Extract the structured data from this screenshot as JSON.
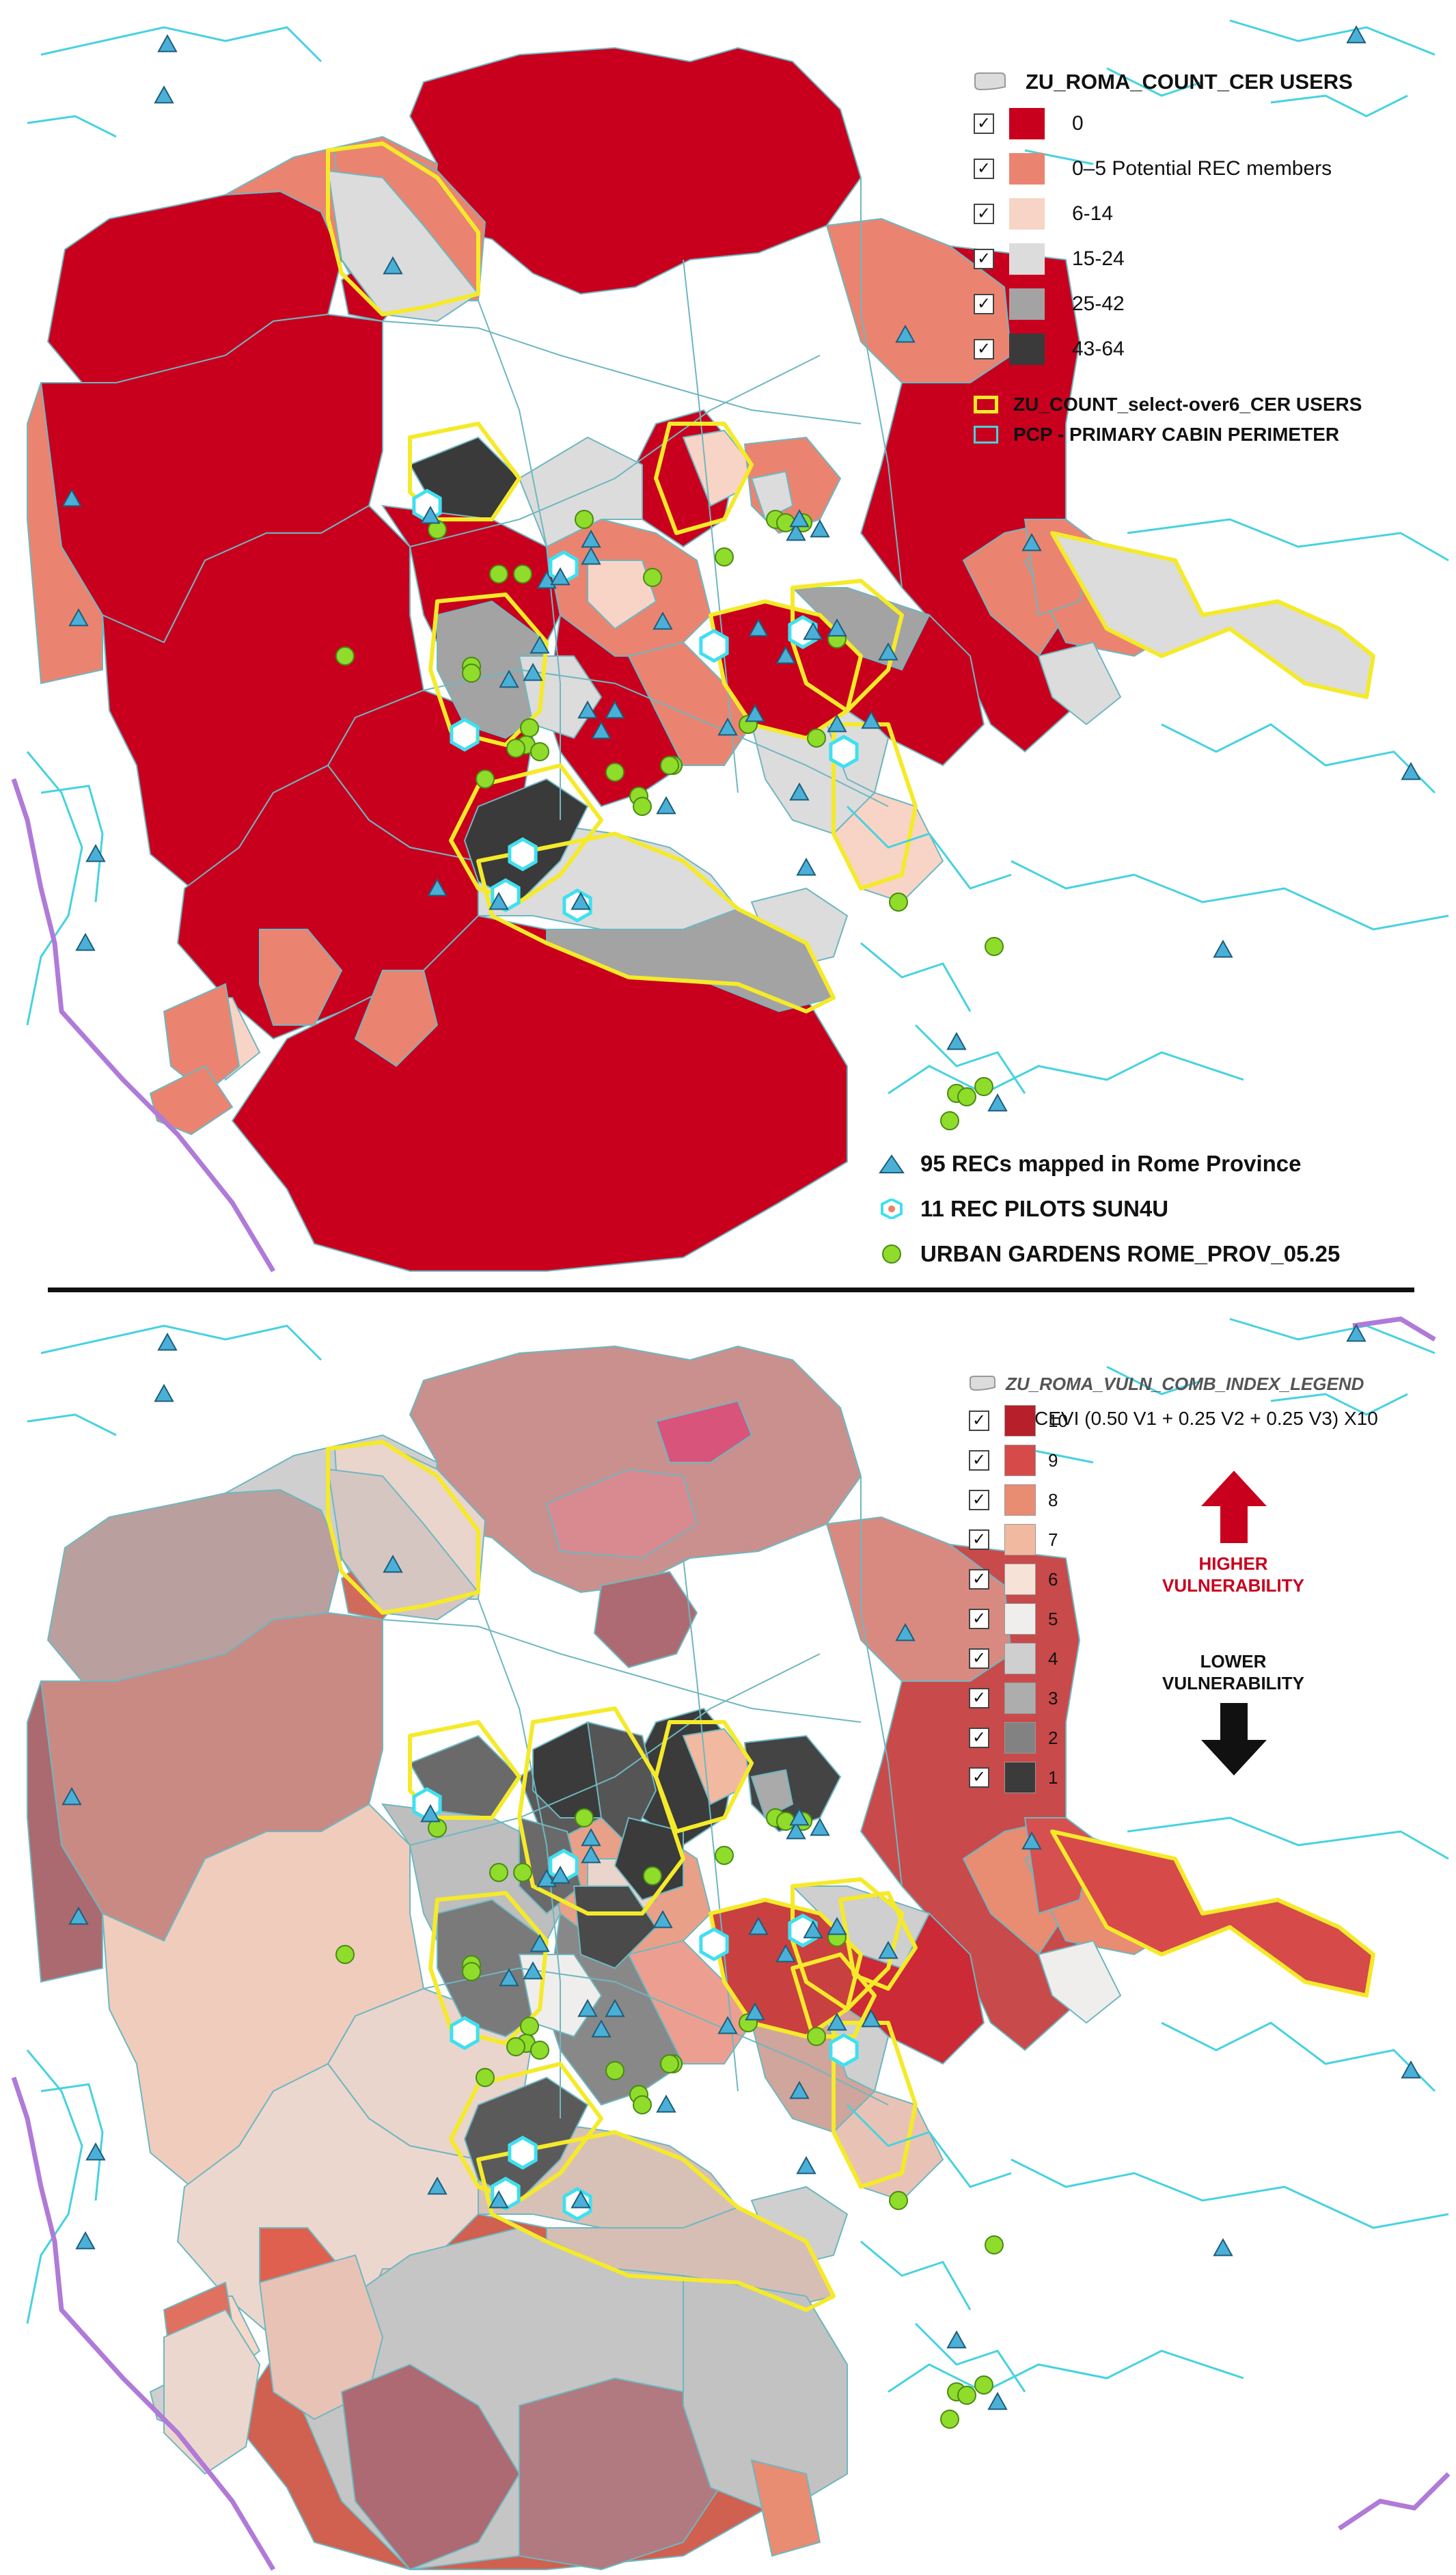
{
  "top_map": {
    "legend_title": "ZU_ROMA_COUNT_CER USERS",
    "classes": [
      {
        "label": "0",
        "color": "#c8001e"
      },
      {
        "label": "0–5 Potential REC members",
        "color": "#ea8470"
      },
      {
        "label": "6-14",
        "color": "#f8d4c6"
      },
      {
        "label": "15-24",
        "color": "#dcdcdc"
      },
      {
        "label": "25-42",
        "color": "#a3a3a3"
      },
      {
        "label": "43-64",
        "color": "#3a3a3a"
      }
    ],
    "checkmark": "✓",
    "line_legend": [
      {
        "label": "ZU_COUNT_select-over6_CER USERS",
        "color": "#f5ea2a"
      },
      {
        "label": "PCP - PRIMARY CABIN PERIMETER",
        "color": "#46d2e0"
      }
    ],
    "point_legend": [
      {
        "label": "95 RECs mapped in Rome Province",
        "icon": "triangle-icon",
        "color": "#4ab0d8"
      },
      {
        "label": "11 REC PILOTS SUN4U",
        "icon": "hexagon-pilot-icon",
        "color": "#3fe0f0"
      },
      {
        "label": "URBAN GARDENS ROME_PROV_05.25",
        "icon": "green-circle-icon",
        "color": "#8fdc2a"
      }
    ]
  },
  "bottom_map": {
    "legend_title": "ZU_ROMA_VULN_COMB_INDEX_LEGEND",
    "formula": "CEVI (0.50 V1 + 0.25 V2 + 0.25 V3) X10",
    "classes": [
      {
        "label": "10",
        "color": "#b7202b"
      },
      {
        "label": "9",
        "color": "#d64a4a"
      },
      {
        "label": "8",
        "color": "#e88c72"
      },
      {
        "label": "7",
        "color": "#f1b9a0"
      },
      {
        "label": "6",
        "color": "#f6e2d6"
      },
      {
        "label": "5",
        "color": "#f0eeec"
      },
      {
        "label": "4",
        "color": "#cfcfcf"
      },
      {
        "label": "3",
        "color": "#adadad"
      },
      {
        "label": "2",
        "color": "#828282"
      },
      {
        "label": "1",
        "color": "#3b3b3b"
      }
    ],
    "checkmark": "✓",
    "higher_label": [
      "HIGHER",
      "VULNERABILITY"
    ],
    "lower_label": [
      "LOWER",
      "VULNERABILITY"
    ]
  },
  "colors": {
    "zone_border": "#6fb7c0",
    "highlight": "#f5ea2a",
    "pcp": "#46d2e0",
    "coast": "#b07ad8",
    "rec": "#4ab0d8",
    "garden": "#8fdc2a",
    "arrow_up": "#c8001e",
    "arrow_down": "#111111"
  }
}
